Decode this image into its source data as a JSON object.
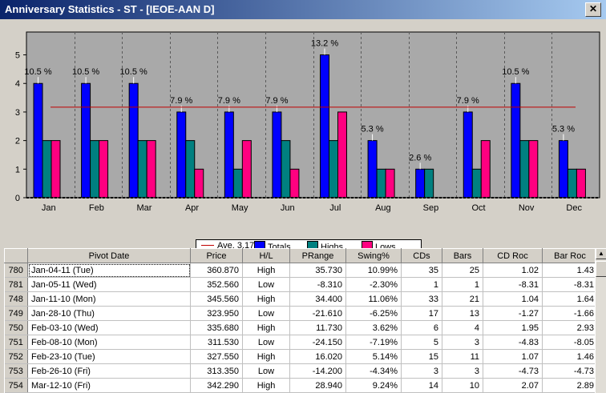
{
  "window": {
    "title": "Anniversary Statistics - ST - [IEOE-AAN D]",
    "close_glyph": "✕"
  },
  "chart_data": {
    "type": "bar",
    "categories": [
      "Jan",
      "Feb",
      "Mar",
      "Apr",
      "May",
      "Jun",
      "Jul",
      "Aug",
      "Sep",
      "Oct",
      "Nov",
      "Dec"
    ],
    "series": [
      {
        "name": "Totals",
        "values": [
          4,
          4,
          4,
          3,
          3,
          3,
          5,
          2,
          1,
          3,
          4,
          2
        ],
        "color": "#0000ff"
      },
      {
        "name": "Highs",
        "values": [
          2,
          2,
          2,
          2,
          1,
          2,
          2,
          1,
          1,
          1,
          2,
          1
        ],
        "color": "#008080"
      },
      {
        "name": "Lows",
        "values": [
          2,
          2,
          2,
          1,
          2,
          1,
          3,
          1,
          0,
          2,
          2,
          1
        ],
        "color": "#ff0080"
      }
    ],
    "percent_labels": [
      "10.5 %",
      "10.5 %",
      "10.5 %",
      "7.9 %",
      "7.9 %",
      "7.9 %",
      "13.2 %",
      "5.3 %",
      "2.6 %",
      "7.9 %",
      "10.5 %",
      "5.3 %"
    ],
    "average": {
      "label": "Ave. 3.17",
      "value": 3.17,
      "color": "#c00000"
    },
    "yticks": [
      0,
      1,
      2,
      3,
      4,
      5
    ],
    "ylim": [
      0,
      5.8
    ],
    "plot_bg": "#a9a9a9",
    "legend_placement": "bottom-center"
  },
  "table": {
    "columns": [
      "Pivot Date",
      "Price",
      "H/L",
      "PRange",
      "Swing%",
      "CDs",
      "Bars",
      "CD Roc",
      "Bar Roc"
    ],
    "rows": [
      {
        "id": "780",
        "cells": [
          "Jan-04-11 (Tue)",
          "360.870",
          "High",
          "35.730",
          "10.99%",
          "35",
          "25",
          "1.02",
          "1.43"
        ]
      },
      {
        "id": "781",
        "cells": [
          "Jan-05-11 (Wed)",
          "352.560",
          "Low",
          "-8.310",
          "-2.30%",
          "1",
          "1",
          "-8.31",
          "-8.31"
        ]
      },
      {
        "id": "748",
        "cells": [
          "Jan-11-10 (Mon)",
          "345.560",
          "High",
          "34.400",
          "11.06%",
          "33",
          "21",
          "1.04",
          "1.64"
        ]
      },
      {
        "id": "749",
        "cells": [
          "Jan-28-10 (Thu)",
          "323.950",
          "Low",
          "-21.610",
          "-6.25%",
          "17",
          "13",
          "-1.27",
          "-1.66"
        ]
      },
      {
        "id": "750",
        "cells": [
          "Feb-03-10 (Wed)",
          "335.680",
          "High",
          "11.730",
          "3.62%",
          "6",
          "4",
          "1.95",
          "2.93"
        ]
      },
      {
        "id": "751",
        "cells": [
          "Feb-08-10 (Mon)",
          "311.530",
          "Low",
          "-24.150",
          "-7.19%",
          "5",
          "3",
          "-4.83",
          "-8.05"
        ]
      },
      {
        "id": "752",
        "cells": [
          "Feb-23-10 (Tue)",
          "327.550",
          "High",
          "16.020",
          "5.14%",
          "15",
          "11",
          "1.07",
          "1.46"
        ]
      },
      {
        "id": "753",
        "cells": [
          "Feb-26-10 (Fri)",
          "313.350",
          "Low",
          "-14.200",
          "-4.34%",
          "3",
          "3",
          "-4.73",
          "-4.73"
        ]
      },
      {
        "id": "754",
        "cells": [
          "Mar-12-10 (Fri)",
          "342.290",
          "High",
          "28.940",
          "9.24%",
          "14",
          "10",
          "2.07",
          "2.89"
        ]
      }
    ]
  }
}
